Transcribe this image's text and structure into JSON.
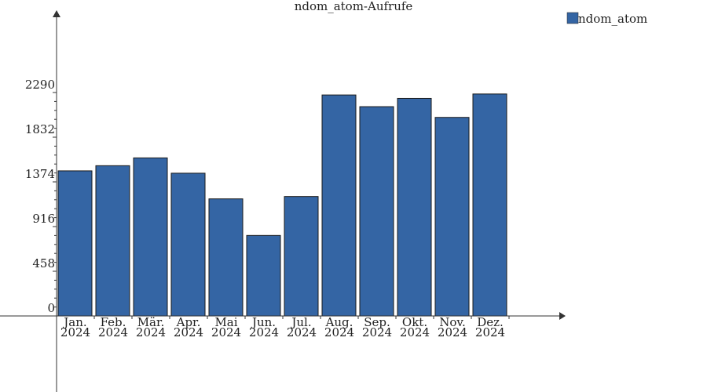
{
  "chart_data": {
    "type": "bar",
    "title": "ndom_atom-Aufrufe",
    "xlabel": "",
    "ylabel": "",
    "categories": [
      [
        "Jan.",
        "2024"
      ],
      [
        "Feb.",
        "2024"
      ],
      [
        "Mär.",
        "2024"
      ],
      [
        "Apr.",
        "2024"
      ],
      [
        "Mai",
        "2024"
      ],
      [
        "Jun.",
        "2024"
      ],
      [
        "Jul.",
        "2024"
      ],
      [
        "Aug.",
        "2024"
      ],
      [
        "Sep.",
        "2024"
      ],
      [
        "Okt.",
        "2024"
      ],
      [
        "Nov.",
        "2024"
      ],
      [
        "Dez.",
        "2024"
      ]
    ],
    "series": [
      {
        "name": "ndom_atom",
        "color": "#3465a4",
        "values": [
          1487,
          1540,
          1620,
          1463,
          1200,
          825,
          1224,
          2265,
          2145,
          2230,
          2035,
          2275
        ]
      }
    ],
    "yticks": [
      "0",
      "458",
      "916",
      "1374",
      "1832",
      "2290"
    ],
    "ylim": [
      0,
      2290
    ],
    "grid": false,
    "legend": "top-right"
  }
}
